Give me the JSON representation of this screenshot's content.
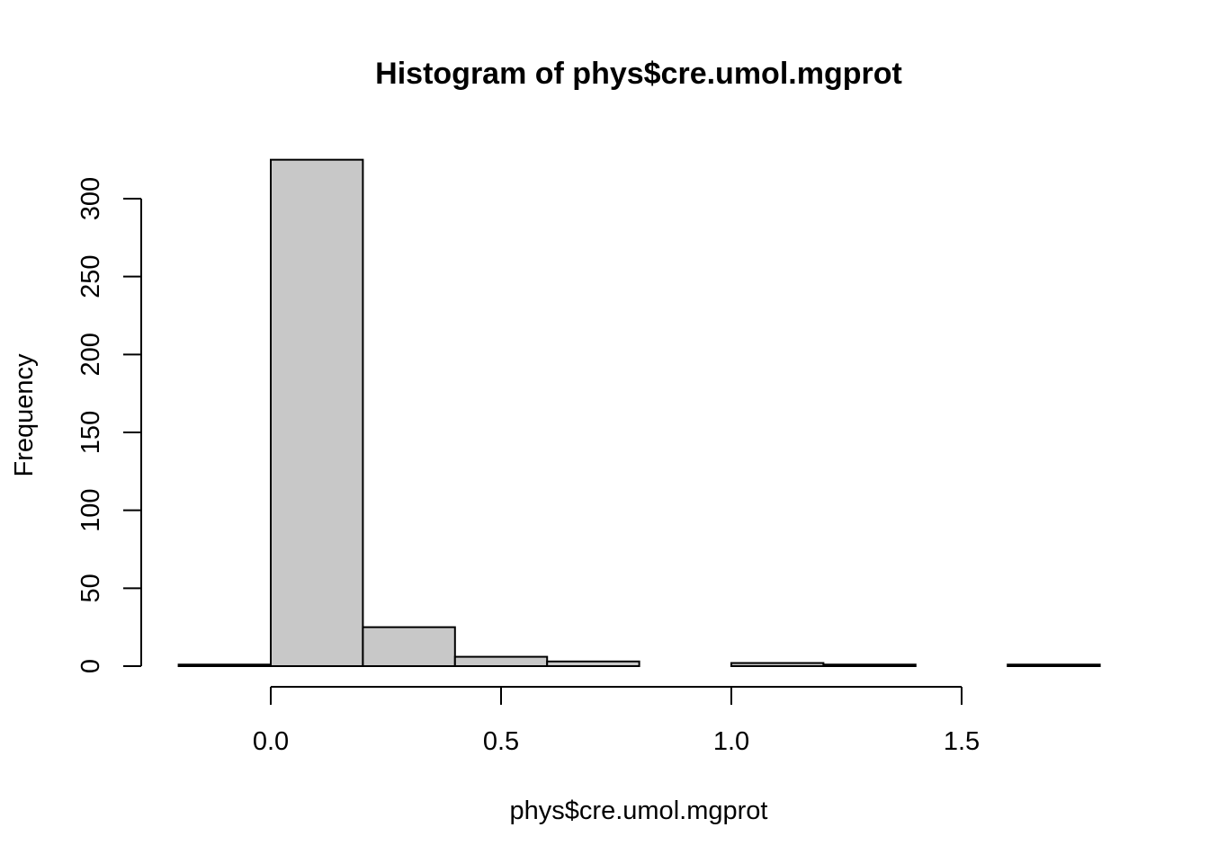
{
  "chart_data": {
    "type": "bar",
    "title": "Histogram of phys$cre.umol.mgprot",
    "xlabel": "phys$cre.umol.mgprot",
    "ylabel": "Frequency",
    "bins": [
      {
        "start": -0.2,
        "end": 0.0,
        "count": 1
      },
      {
        "start": 0.0,
        "end": 0.2,
        "count": 325
      },
      {
        "start": 0.2,
        "end": 0.4,
        "count": 25
      },
      {
        "start": 0.4,
        "end": 0.6,
        "count": 6
      },
      {
        "start": 0.6,
        "end": 0.8,
        "count": 3
      },
      {
        "start": 0.8,
        "end": 1.0,
        "count": 0
      },
      {
        "start": 1.0,
        "end": 1.2,
        "count": 2
      },
      {
        "start": 1.2,
        "end": 1.4,
        "count": 1
      },
      {
        "start": 1.4,
        "end": 1.6,
        "count": 0
      },
      {
        "start": 1.6,
        "end": 1.8,
        "count": 1
      }
    ],
    "x_ticks": [
      0.0,
      0.5,
      1.0,
      1.5
    ],
    "x_tick_labels": [
      "0.0",
      "0.5",
      "1.0",
      "1.5"
    ],
    "y_ticks": [
      0,
      50,
      100,
      150,
      200,
      250,
      300
    ],
    "y_tick_labels": [
      "0",
      "50",
      "100",
      "150",
      "200",
      "250",
      "300"
    ],
    "xlim": [
      -0.2,
      1.8
    ],
    "ylim": [
      0,
      325
    ],
    "bar_fill": "#c8c8c8",
    "grid": false,
    "legend": "none"
  }
}
